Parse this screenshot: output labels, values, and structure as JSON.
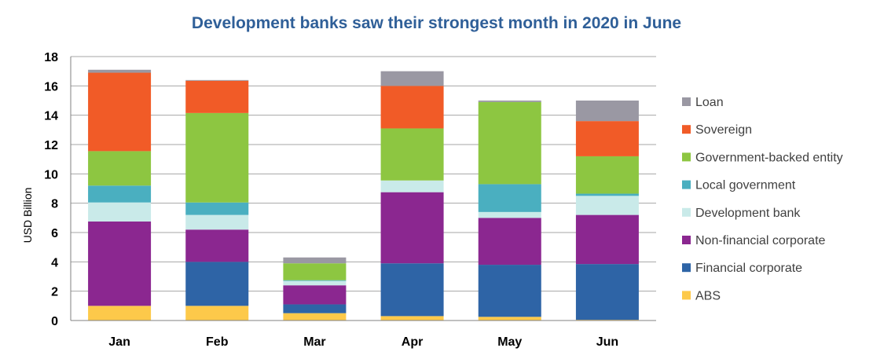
{
  "chart_data": {
    "type": "bar",
    "stacked": true,
    "title": "Development banks saw their strongest month in 2020 in June",
    "xlabel": "",
    "ylabel": "USD Billion",
    "ylim": [
      0,
      18
    ],
    "yticks": [
      0,
      2,
      4,
      6,
      8,
      10,
      12,
      14,
      16,
      18
    ],
    "grid": true,
    "legend_position": "right",
    "categories": [
      "Jan",
      "Feb",
      "Mar",
      "Apr",
      "May",
      "Jun"
    ],
    "series": [
      {
        "name": "ABS",
        "color": "#fdc94a",
        "values": [
          1.0,
          1.0,
          0.5,
          0.3,
          0.25,
          0.05
        ]
      },
      {
        "name": "Financial corporate",
        "color": "#2e64a6",
        "values": [
          0.0,
          3.0,
          0.6,
          3.6,
          3.55,
          3.8
        ]
      },
      {
        "name": "Non-financial corporate",
        "color": "#8b2790",
        "values": [
          5.75,
          2.2,
          1.3,
          4.85,
          3.2,
          3.35
        ]
      },
      {
        "name": "Development bank",
        "color": "#c9eae9",
        "values": [
          1.3,
          1.0,
          0.3,
          0.8,
          0.4,
          1.3
        ]
      },
      {
        "name": "Local government",
        "color": "#4aafc0",
        "values": [
          1.15,
          0.85,
          0.05,
          0.0,
          1.9,
          0.15
        ]
      },
      {
        "name": "Government-backed entity",
        "color": "#8dc641",
        "values": [
          2.35,
          6.1,
          1.15,
          3.55,
          5.6,
          2.55
        ]
      },
      {
        "name": "Sovereign",
        "color": "#f15b27",
        "values": [
          5.35,
          2.2,
          0.0,
          2.9,
          0.0,
          2.4
        ]
      },
      {
        "name": "Loan",
        "color": "#9a98a3",
        "values": [
          0.2,
          0.05,
          0.4,
          1.0,
          0.1,
          1.4
        ]
      }
    ]
  }
}
